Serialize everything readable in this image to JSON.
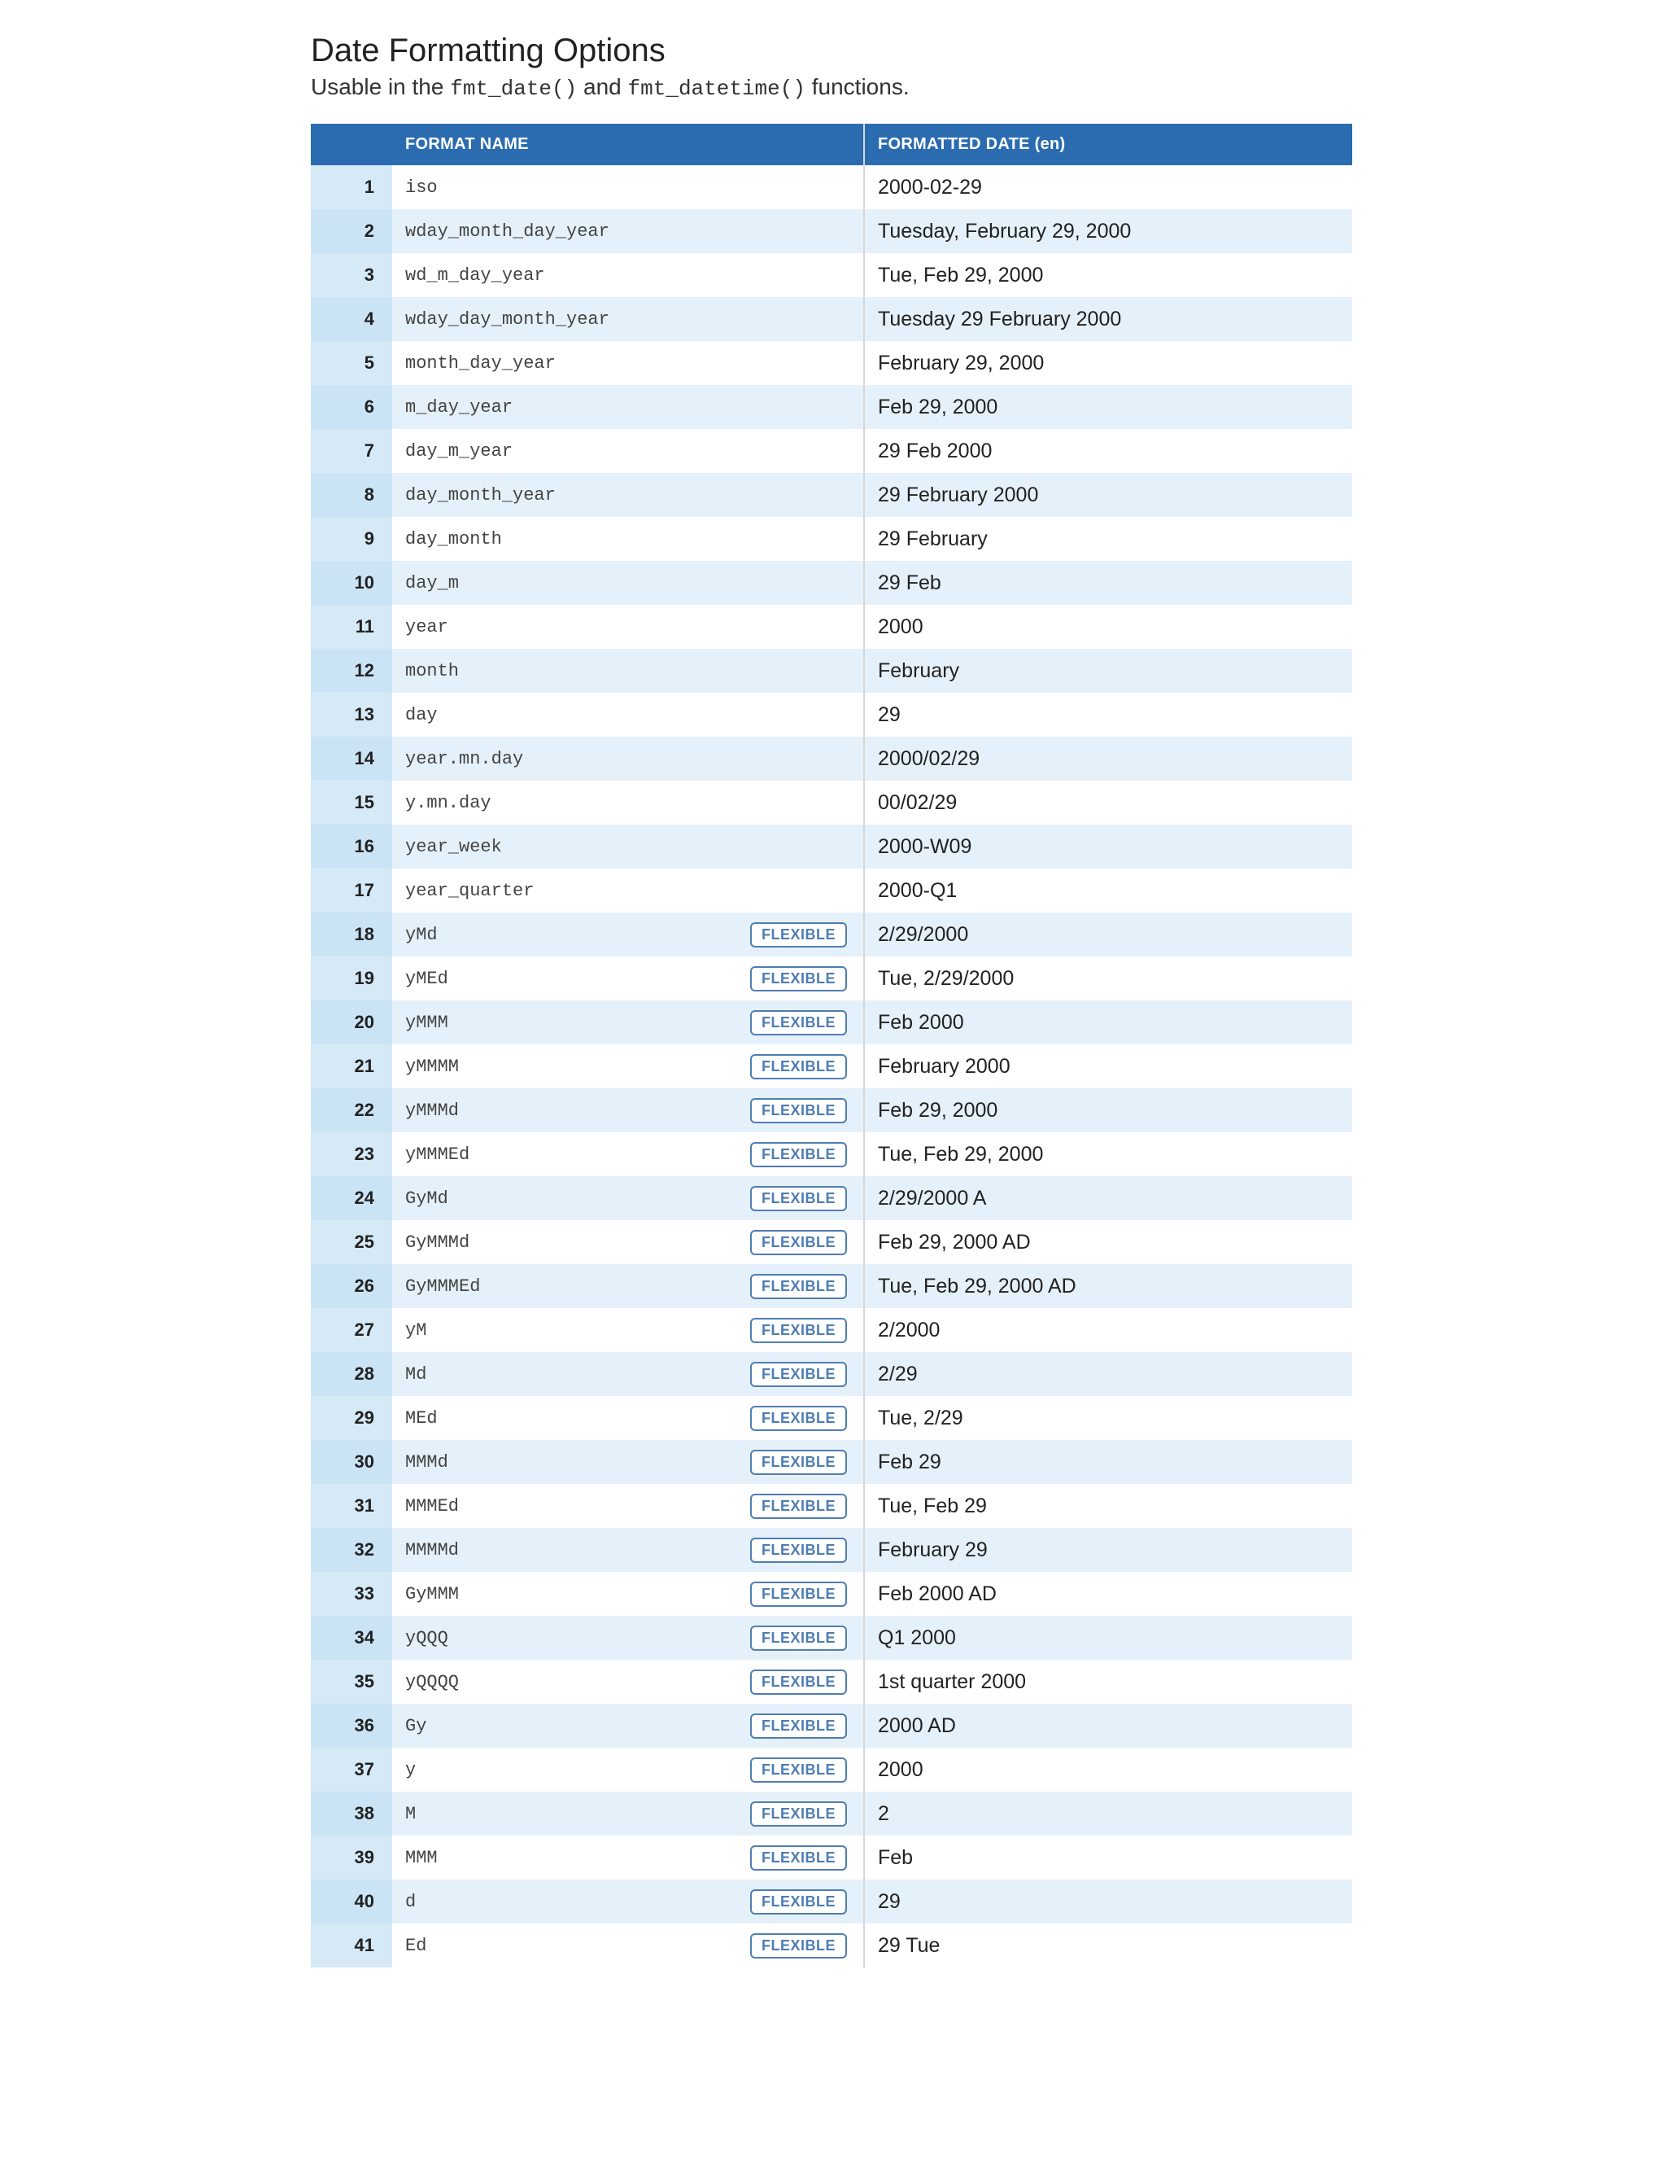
{
  "title": "Date Formatting Options",
  "subtitle_plain_1": "Usable in the ",
  "subtitle_code_1": "fmt_date()",
  "subtitle_plain_2": " and ",
  "subtitle_code_2": "fmt_datetime()",
  "subtitle_plain_3": " functions.",
  "columns": {
    "num": "",
    "name": "FORMAT NAME",
    "flex": "",
    "date": "FORMATTED DATE (en)"
  },
  "badge_label": "FLEXIBLE",
  "colors": {
    "header_bg": "#2b6cb0",
    "header_text": "#ffffff",
    "row_even_bg": "#e5f1fa",
    "row_odd_bg": "#ffffff",
    "num_cell_bg": "#cbe4f5",
    "badge_border": "#4f7db3",
    "divider": "#d7d7d7"
  },
  "rows": [
    {
      "n": "1",
      "name": "iso",
      "flex": false,
      "date": "2000-02-29"
    },
    {
      "n": "2",
      "name": "wday_month_day_year",
      "flex": false,
      "date": "Tuesday, February 29, 2000"
    },
    {
      "n": "3",
      "name": "wd_m_day_year",
      "flex": false,
      "date": "Tue, Feb 29, 2000"
    },
    {
      "n": "4",
      "name": "wday_day_month_year",
      "flex": false,
      "date": "Tuesday 29 February 2000"
    },
    {
      "n": "5",
      "name": "month_day_year",
      "flex": false,
      "date": "February 29, 2000"
    },
    {
      "n": "6",
      "name": "m_day_year",
      "flex": false,
      "date": "Feb 29, 2000"
    },
    {
      "n": "7",
      "name": "day_m_year",
      "flex": false,
      "date": "29 Feb 2000"
    },
    {
      "n": "8",
      "name": "day_month_year",
      "flex": false,
      "date": "29 February 2000"
    },
    {
      "n": "9",
      "name": "day_month",
      "flex": false,
      "date": "29 February"
    },
    {
      "n": "10",
      "name": "day_m",
      "flex": false,
      "date": "29 Feb"
    },
    {
      "n": "11",
      "name": "year",
      "flex": false,
      "date": "2000"
    },
    {
      "n": "12",
      "name": "month",
      "flex": false,
      "date": "February"
    },
    {
      "n": "13",
      "name": "day",
      "flex": false,
      "date": "29"
    },
    {
      "n": "14",
      "name": "year.mn.day",
      "flex": false,
      "date": "2000/02/29"
    },
    {
      "n": "15",
      "name": "y.mn.day",
      "flex": false,
      "date": "00/02/29"
    },
    {
      "n": "16",
      "name": "year_week",
      "flex": false,
      "date": "2000-W09"
    },
    {
      "n": "17",
      "name": "year_quarter",
      "flex": false,
      "date": "2000-Q1"
    },
    {
      "n": "18",
      "name": "yMd",
      "flex": true,
      "date": "2/29/2000"
    },
    {
      "n": "19",
      "name": "yMEd",
      "flex": true,
      "date": "Tue, 2/29/2000"
    },
    {
      "n": "20",
      "name": "yMMM",
      "flex": true,
      "date": "Feb 2000"
    },
    {
      "n": "21",
      "name": "yMMMM",
      "flex": true,
      "date": "February 2000"
    },
    {
      "n": "22",
      "name": "yMMMd",
      "flex": true,
      "date": "Feb 29, 2000"
    },
    {
      "n": "23",
      "name": "yMMMEd",
      "flex": true,
      "date": "Tue, Feb 29, 2000"
    },
    {
      "n": "24",
      "name": "GyMd",
      "flex": true,
      "date": "2/29/2000 A"
    },
    {
      "n": "25",
      "name": "GyMMMd",
      "flex": true,
      "date": "Feb 29, 2000 AD"
    },
    {
      "n": "26",
      "name": "GyMMMEd",
      "flex": true,
      "date": "Tue, Feb 29, 2000 AD"
    },
    {
      "n": "27",
      "name": "yM",
      "flex": true,
      "date": "2/2000"
    },
    {
      "n": "28",
      "name": "Md",
      "flex": true,
      "date": "2/29"
    },
    {
      "n": "29",
      "name": "MEd",
      "flex": true,
      "date": "Tue, 2/29"
    },
    {
      "n": "30",
      "name": "MMMd",
      "flex": true,
      "date": "Feb 29"
    },
    {
      "n": "31",
      "name": "MMMEd",
      "flex": true,
      "date": "Tue, Feb 29"
    },
    {
      "n": "32",
      "name": "MMMMd",
      "flex": true,
      "date": "February 29"
    },
    {
      "n": "33",
      "name": "GyMMM",
      "flex": true,
      "date": "Feb 2000 AD"
    },
    {
      "n": "34",
      "name": "yQQQ",
      "flex": true,
      "date": "Q1 2000"
    },
    {
      "n": "35",
      "name": "yQQQQ",
      "flex": true,
      "date": "1st quarter 2000"
    },
    {
      "n": "36",
      "name": "Gy",
      "flex": true,
      "date": "2000 AD"
    },
    {
      "n": "37",
      "name": "y",
      "flex": true,
      "date": "2000"
    },
    {
      "n": "38",
      "name": "M",
      "flex": true,
      "date": "2"
    },
    {
      "n": "39",
      "name": "MMM",
      "flex": true,
      "date": "Feb"
    },
    {
      "n": "40",
      "name": "d",
      "flex": true,
      "date": "29"
    },
    {
      "n": "41",
      "name": "Ed",
      "flex": true,
      "date": "29 Tue"
    }
  ]
}
